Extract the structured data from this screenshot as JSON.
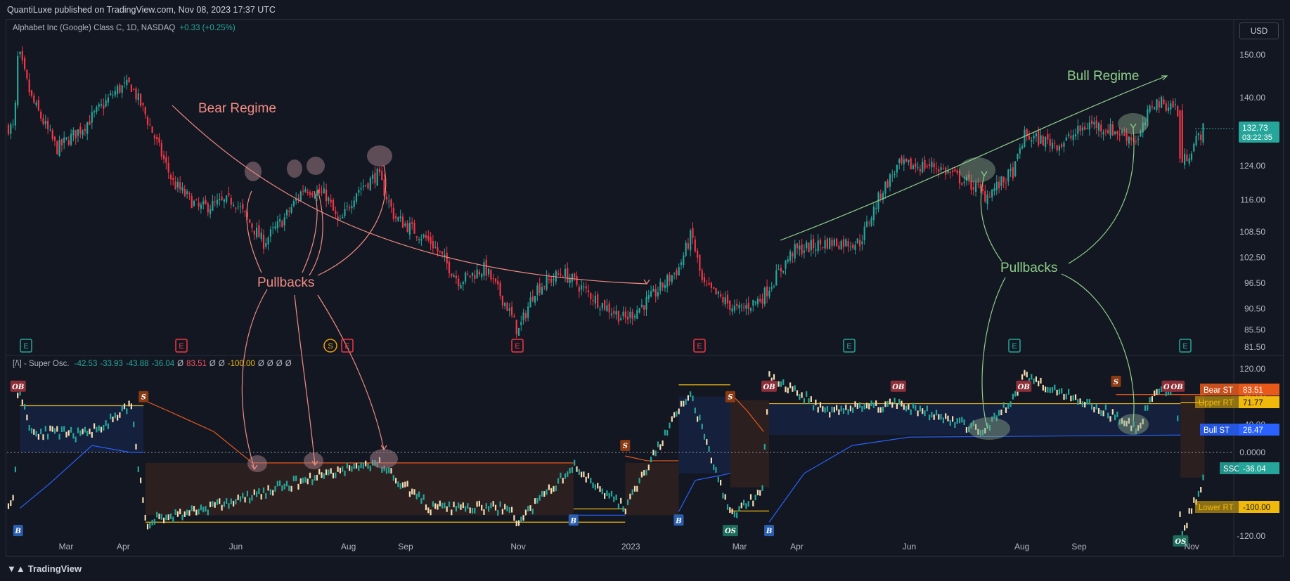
{
  "header": {
    "published": "QuantiLuxe published on TradingView.com, Nov 08, 2023 17:37 UTC",
    "currency": "USD",
    "footer_brand": "TradingView"
  },
  "main_legend": {
    "symbol": "Alphabet Inc (Google) Class C, 1D, NASDAQ",
    "change": "+0.33 (+0.25%)"
  },
  "osc_legend": {
    "name": "[/\\] - Super Osc.",
    "values": [
      {
        "text": "-42.53",
        "color": "#26a69a"
      },
      {
        "text": "-33.93",
        "color": "#26a69a"
      },
      {
        "text": "-43.88",
        "color": "#26a69a"
      },
      {
        "text": "-36.04",
        "color": "#26a69a"
      },
      {
        "text": "Ø",
        "color": "#b2b5be"
      },
      {
        "text": "83.51",
        "color": "#f7525f"
      },
      {
        "text": "Ø",
        "color": "#b2b5be"
      },
      {
        "text": "Ø",
        "color": "#b2b5be"
      },
      {
        "text": "-100.00",
        "color": "#f0b90b"
      },
      {
        "text": "Ø",
        "color": "#b2b5be"
      },
      {
        "text": "Ø",
        "color": "#b2b5be"
      },
      {
        "text": "Ø",
        "color": "#b2b5be"
      },
      {
        "text": "Ø",
        "color": "#b2b5be"
      }
    ]
  },
  "colors": {
    "up": "#26a69a",
    "down": "#f23645",
    "bear": "#f28b82",
    "bull": "#8fcf8a",
    "osc_light": "#f5deb3",
    "bull_st": "#2962ff",
    "bear_st": "#e8591a",
    "rt": "#f0b90b"
  },
  "chart_data": [
    {
      "type": "candlestick",
      "title": "Alphabet Inc (Google) Class C, 1D, NASDAQ",
      "x_ticks": [
        "Mar",
        "Apr",
        "Jun",
        "Aug",
        "Sep",
        "Nov",
        "2023",
        "Mar",
        "Apr",
        "Jun",
        "Aug",
        "Sep",
        "Nov"
      ],
      "y_ticks": [
        150.0,
        140.0,
        132.73,
        124.0,
        116.0,
        108.5,
        102.5,
        96.5,
        90.5,
        85.5,
        81.5
      ],
      "ylim": [
        80.5,
        153
      ],
      "close_path": [
        [
          "2022-02-01",
          133
        ],
        [
          "2022-02-03",
          151
        ],
        [
          "2022-02-10",
          140
        ],
        [
          "2022-02-24",
          128
        ],
        [
          "2022-03-10",
          133
        ],
        [
          "2022-03-29",
          142
        ],
        [
          "2022-04-05",
          143
        ],
        [
          "2022-04-12",
          137
        ],
        [
          "2022-04-28",
          120
        ],
        [
          "2022-05-12",
          114
        ],
        [
          "2022-05-31",
          116
        ],
        [
          "2022-06-16",
          106
        ],
        [
          "2022-06-28",
          112
        ],
        [
          "2022-07-08",
          119
        ],
        [
          "2022-07-20",
          117
        ],
        [
          "2022-07-27",
          110
        ],
        [
          "2022-08-05",
          118
        ],
        [
          "2022-08-17",
          122
        ],
        [
          "2022-08-26",
          112
        ],
        [
          "2022-09-15",
          106
        ],
        [
          "2022-09-30",
          97
        ],
        [
          "2022-10-14",
          100
        ],
        [
          "2022-10-26",
          91
        ],
        [
          "2022-11-01",
          85
        ],
        [
          "2022-11-10",
          95
        ],
        [
          "2022-11-25",
          99
        ],
        [
          "2022-12-15",
          92
        ],
        [
          "2022-12-29",
          88
        ],
        [
          "2023-01-12",
          93
        ],
        [
          "2023-01-27",
          100
        ],
        [
          "2023-02-03",
          108
        ],
        [
          "2023-02-09",
          96
        ],
        [
          "2023-02-28",
          90
        ],
        [
          "2023-03-13",
          93
        ],
        [
          "2023-03-30",
          104
        ],
        [
          "2023-04-17",
          106
        ],
        [
          "2023-05-05",
          106
        ],
        [
          "2023-05-17",
          118
        ],
        [
          "2023-05-26",
          124
        ],
        [
          "2023-06-15",
          124
        ],
        [
          "2023-07-07",
          119
        ],
        [
          "2023-07-12",
          117
        ],
        [
          "2023-07-21",
          120
        ],
        [
          "2023-07-28",
          123
        ],
        [
          "2023-08-02",
          131
        ],
        [
          "2023-08-22",
          129
        ],
        [
          "2023-09-07",
          134
        ],
        [
          "2023-09-21",
          132
        ],
        [
          "2023-10-03",
          130
        ],
        [
          "2023-10-11",
          139
        ],
        [
          "2023-10-24",
          138
        ],
        [
          "2023-10-26",
          124
        ],
        [
          "2023-11-08",
          133
        ]
      ],
      "annotations": [
        "Bear Regime",
        "Pullbacks",
        "Bull Regime",
        "Pullbacks"
      ],
      "events": [
        "E",
        "E",
        "S",
        "E",
        "E",
        "E",
        "E",
        "E",
        "E"
      ],
      "price_label": {
        "price": "132.73",
        "countdown": "03:22:35"
      }
    },
    {
      "type": "line",
      "title": "[/\\] - Super Osc.",
      "y_ticks": [
        120.0,
        80.0,
        40.0,
        0.0,
        -80.0,
        -120.0
      ],
      "ylim": [
        -132,
        125
      ],
      "series": [
        {
          "name": "Bear ST",
          "last": "83.51",
          "color": "#e8591a"
        },
        {
          "name": "Upper RT",
          "last": "71.77",
          "color": "#f0b90b"
        },
        {
          "name": "Bull ST",
          "last": "26.47",
          "color": "#2962ff"
        },
        {
          "name": "SSO",
          "last": "-36.04",
          "color": "#26a69a"
        },
        {
          "name": "Lower RT",
          "last": "-100.00",
          "color": "#f0b90b"
        }
      ],
      "sso_path": [
        [
          "2022-02-01",
          -70
        ],
        [
          "2022-02-03",
          100
        ],
        [
          "2022-02-10",
          30
        ],
        [
          "2022-03-10",
          25
        ],
        [
          "2022-03-29",
          50
        ],
        [
          "2022-04-05",
          70
        ],
        [
          "2022-04-13",
          -100
        ],
        [
          "2022-06-01",
          -70
        ],
        [
          "2022-07-20",
          -30
        ],
        [
          "2022-08-17",
          -15
        ],
        [
          "2022-09-15",
          -80
        ],
        [
          "2022-10-26",
          -80
        ],
        [
          "2022-11-01",
          -100
        ],
        [
          "2022-12-01",
          -20
        ],
        [
          "2022-12-29",
          -80
        ],
        [
          "2023-01-27",
          60
        ],
        [
          "2023-02-03",
          80
        ],
        [
          "2023-02-09",
          30
        ],
        [
          "2023-02-24",
          -90
        ],
        [
          "2023-03-13",
          -60
        ],
        [
          "2023-03-17",
          110
        ],
        [
          "2023-04-17",
          60
        ],
        [
          "2023-05-26",
          70
        ],
        [
          "2023-07-12",
          30
        ],
        [
          "2023-07-28",
          80
        ],
        [
          "2023-08-02",
          110
        ],
        [
          "2023-09-07",
          70
        ],
        [
          "2023-09-21",
          50
        ],
        [
          "2023-10-03",
          35
        ],
        [
          "2023-10-11",
          85
        ],
        [
          "2023-10-24",
          90
        ],
        [
          "2023-10-26",
          -120
        ],
        [
          "2023-11-08",
          -36
        ]
      ],
      "markers": [
        {
          "label": "OB",
          "date": "2022-02-03"
        },
        {
          "label": "B",
          "date": "2022-02-03"
        },
        {
          "label": "S",
          "date": "2022-04-12"
        },
        {
          "label": "S",
          "date": "2022-12-29"
        },
        {
          "label": "B",
          "date": "2022-12-01"
        },
        {
          "label": "B",
          "date": "2023-01-27"
        },
        {
          "label": "S",
          "date": "2023-02-24"
        },
        {
          "label": "OS",
          "date": "2023-02-24"
        },
        {
          "label": "OB",
          "date": "2023-03-17"
        },
        {
          "label": "B",
          "date": "2023-03-17"
        },
        {
          "label": "OB",
          "date": "2023-05-26"
        },
        {
          "label": "OB",
          "date": "2023-08-02"
        },
        {
          "label": "S",
          "date": "2023-09-21"
        },
        {
          "label": "OB",
          "date": "2023-10-20"
        },
        {
          "label": "OB",
          "date": "2023-10-24"
        },
        {
          "label": "OS",
          "date": "2023-10-26"
        }
      ]
    }
  ]
}
